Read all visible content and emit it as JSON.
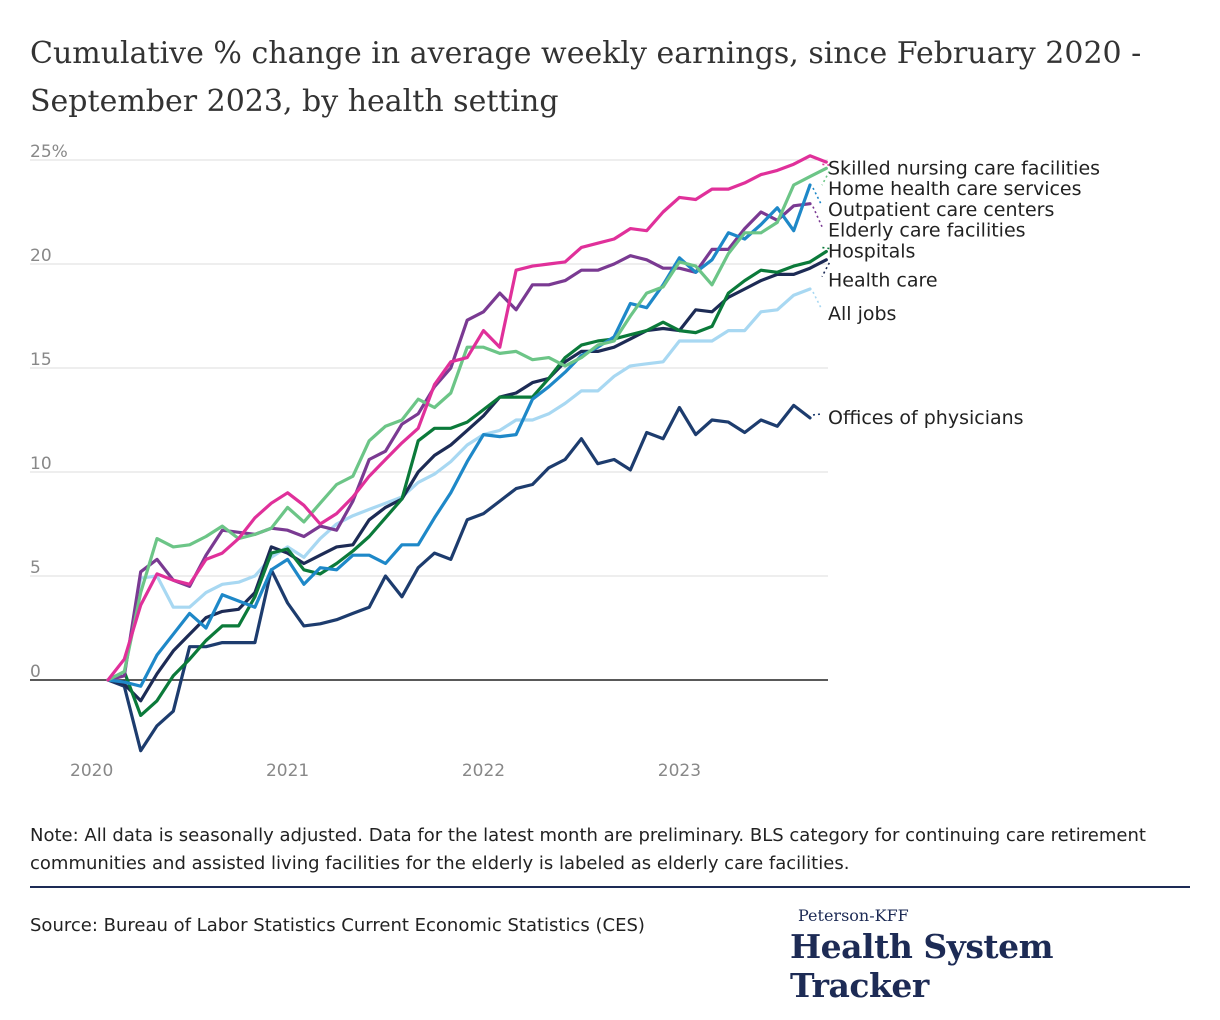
{
  "title": "Cumulative % change in average weekly earnings, since February 2020 - September 2023, by health setting",
  "note": "Note: All data is seasonally adjusted. Data for the latest month are preliminary. BLS category for continuing care retirement communities and assisted living facilities for the elderly is labeled as elderly care facilities.",
  "source": "Source: Bureau of Labor Statistics Current Economic Statistics (CES)",
  "brand": {
    "top": "Peterson-KFF",
    "main": "Health System Tracker",
    "color": "#1d2b55"
  },
  "chart_data": {
    "type": "line",
    "x_start": "2020-02",
    "x_end": "2023-09",
    "xticks": [
      {
        "label": "2020",
        "value": "2020-01"
      },
      {
        "label": "2021",
        "value": "2021-01"
      },
      {
        "label": "2022",
        "value": "2022-01"
      },
      {
        "label": "2023",
        "value": "2023-01"
      }
    ],
    "yticks": [
      {
        "label": "25%",
        "value": 25
      },
      {
        "label": "20",
        "value": 20
      },
      {
        "label": "15",
        "value": 15
      },
      {
        "label": "10",
        "value": 10
      },
      {
        "label": "5",
        "value": 5
      },
      {
        "label": "0",
        "value": 0
      }
    ],
    "ylim": [
      -4,
      25
    ],
    "grid": true,
    "legend": "direct labels at line ends",
    "series": [
      {
        "name": "Skilled nursing care facilities",
        "color": "#e0309a",
        "label_value": 24.6,
        "values": [
          0,
          1.0,
          3.6,
          5.1,
          4.8,
          4.6,
          5.8,
          6.1,
          6.8,
          7.8,
          8.5,
          9.0,
          8.4,
          7.5,
          8.0,
          8.8,
          9.8,
          10.6,
          11.4,
          12.1,
          14.2,
          15.3,
          15.5,
          16.8,
          16.0,
          19.7,
          19.9,
          20.0,
          20.1,
          20.8,
          21.0,
          21.2,
          21.7,
          21.6,
          22.5,
          23.2,
          23.1,
          23.6,
          23.6,
          23.9,
          24.3,
          24.5,
          24.8,
          25.2,
          24.9
        ]
      },
      {
        "name": "Home health care services",
        "color": "#6cc587",
        "label_value": 23.6,
        "values": [
          0,
          0.4,
          4.2,
          6.8,
          6.4,
          6.5,
          6.9,
          7.4,
          6.8,
          7.0,
          7.3,
          8.3,
          7.6,
          8.5,
          9.4,
          9.8,
          11.5,
          12.2,
          12.5,
          13.5,
          13.1,
          13.8,
          16.0,
          16.0,
          15.7,
          15.8,
          15.4,
          15.5,
          15.1,
          15.5,
          16.1,
          16.3,
          17.5,
          18.6,
          18.9,
          20.1,
          19.9,
          19.0,
          20.5,
          21.5,
          21.5,
          22.0,
          23.8,
          24.2,
          24.6
        ]
      },
      {
        "name": "Outpatient care centers",
        "color": "#1e88c8",
        "label_value": 22.6,
        "values": [
          0,
          -0.1,
          -0.3,
          1.2,
          2.2,
          3.2,
          2.5,
          4.1,
          3.8,
          3.5,
          5.3,
          5.8,
          4.6,
          5.4,
          5.3,
          6.0,
          6.0,
          5.6,
          6.5,
          6.5,
          7.8,
          9.0,
          10.5,
          11.8,
          11.7,
          11.8,
          13.5,
          14.1,
          14.8,
          15.6,
          16.0,
          16.5,
          18.1,
          17.9,
          19.0,
          20.3,
          19.6,
          20.2,
          21.5,
          21.2,
          21.9,
          22.7,
          21.6,
          23.8,
          null
        ]
      },
      {
        "name": "Elderly care facilities",
        "color": "#7a3a92",
        "label_value": 21.6,
        "values": [
          0,
          0.2,
          5.2,
          5.8,
          4.8,
          4.5,
          6.0,
          7.2,
          7.1,
          7.0,
          7.3,
          7.2,
          6.9,
          7.4,
          7.2,
          8.6,
          10.6,
          11.0,
          12.3,
          12.8,
          14.1,
          15.0,
          17.3,
          17.7,
          18.6,
          17.8,
          19.0,
          19.0,
          19.2,
          19.7,
          19.7,
          20.0,
          20.4,
          20.2,
          19.8,
          19.8,
          19.6,
          20.7,
          20.7,
          21.7,
          22.5,
          22.1,
          22.8,
          22.9,
          null
        ]
      },
      {
        "name": "Hospitals",
        "color": "#0b7a3a",
        "label_value": 20.6,
        "values": [
          0,
          0.4,
          -1.7,
          -1.0,
          0.2,
          1.0,
          1.9,
          2.6,
          2.6,
          4.0,
          6.1,
          6.3,
          5.3,
          5.1,
          5.6,
          6.2,
          6.9,
          7.8,
          8.7,
          11.5,
          12.1,
          12.1,
          12.4,
          13.0,
          13.6,
          13.6,
          13.6,
          14.5,
          15.5,
          16.1,
          16.3,
          16.4,
          16.6,
          16.8,
          17.2,
          16.8,
          16.7,
          17.0,
          18.6,
          19.2,
          19.7,
          19.6,
          19.9,
          20.1,
          20.6
        ]
      },
      {
        "name": "Health care",
        "color": "#1d2b55",
        "label_value": 19.2,
        "values": [
          0,
          -0.2,
          -1.0,
          0.3,
          1.4,
          2.2,
          3.0,
          3.3,
          3.4,
          4.2,
          6.4,
          6.1,
          5.6,
          6.0,
          6.4,
          6.5,
          7.7,
          8.3,
          8.7,
          10.0,
          10.8,
          11.3,
          12.0,
          12.7,
          13.6,
          13.8,
          14.3,
          14.5,
          15.3,
          15.8,
          15.8,
          16.0,
          16.4,
          16.8,
          16.9,
          16.8,
          17.8,
          17.7,
          18.4,
          18.8,
          19.2,
          19.5,
          19.5,
          19.8,
          20.2
        ]
      },
      {
        "name": "All jobs",
        "color": "#a8d8f2",
        "label_value": 17.6,
        "values": [
          0,
          0.3,
          4.9,
          5.0,
          3.5,
          3.5,
          4.2,
          4.6,
          4.7,
          5.0,
          5.9,
          6.4,
          5.9,
          6.8,
          7.5,
          7.9,
          8.2,
          8.5,
          8.8,
          9.5,
          9.9,
          10.5,
          11.3,
          11.8,
          12.0,
          12.5,
          12.5,
          12.8,
          13.3,
          13.9,
          13.9,
          14.6,
          15.1,
          15.2,
          15.3,
          16.3,
          16.3,
          16.3,
          16.8,
          16.8,
          17.7,
          17.8,
          18.5,
          18.8,
          null
        ]
      },
      {
        "name": "Offices of physicians",
        "color": "#1d3c6e",
        "label_value": 12.6,
        "values": [
          0,
          -0.3,
          -3.4,
          -2.2,
          -1.5,
          1.6,
          1.6,
          1.8,
          1.8,
          1.8,
          5.3,
          3.7,
          2.6,
          2.7,
          2.9,
          3.2,
          3.5,
          5.0,
          4.0,
          5.4,
          6.1,
          5.8,
          7.7,
          8.0,
          8.6,
          9.2,
          9.4,
          10.2,
          10.6,
          11.6,
          10.4,
          10.6,
          10.1,
          11.9,
          11.6,
          13.1,
          11.8,
          12.5,
          12.4,
          11.9,
          12.5,
          12.2,
          13.2,
          12.6,
          null
        ]
      }
    ]
  }
}
